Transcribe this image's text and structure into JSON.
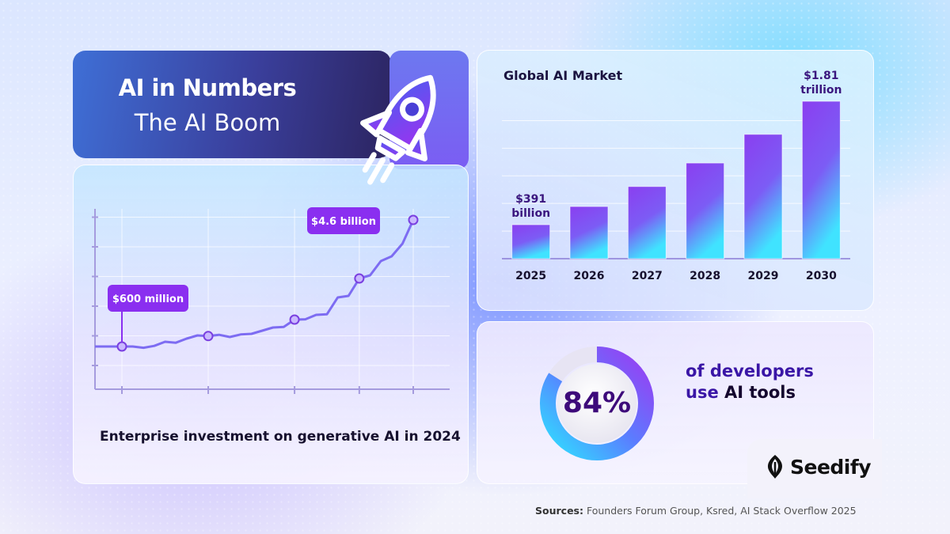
{
  "header": {
    "title": "AI in Numbers",
    "subtitle": "The AI Boom"
  },
  "market_chart": {
    "title": "Global AI Market"
  },
  "investment_chart": {
    "caption_prefix": "Enterprise investment on generative ",
    "caption_ai": "AI",
    "caption_mid": " in ",
    "caption_year": "2024"
  },
  "developers": {
    "percent_label": "84%",
    "line1": "of developers",
    "line2_prefix": "use ",
    "line2_em": "AI tools",
    "percent": 84
  },
  "brand": {
    "name": "Seedify"
  },
  "sources": {
    "label": "Sources:",
    "text": " Founders Forum Group, Ksred, AI Stack Overflow 2025"
  },
  "colors": {
    "accent_purple": "#7b2ff0",
    "accent_cyan": "#2fe0ff",
    "dark_text": "#1b1340"
  },
  "chart_data": [
    {
      "type": "bar",
      "title": "Global AI Market",
      "categories": [
        "2025",
        "2026",
        "2027",
        "2028",
        "2029",
        "2030"
      ],
      "values": [
        0.391,
        0.6,
        0.83,
        1.1,
        1.43,
        1.81
      ],
      "unit": "trillion USD",
      "data_labels": [
        {
          "index": 0,
          "line1": "$391",
          "line2": "billion"
        },
        {
          "index": 5,
          "line1": "$1.81",
          "line2": "trillion"
        }
      ],
      "ylim": [
        0,
        1.81
      ],
      "grid": true
    },
    {
      "type": "line",
      "caption": "Enterprise investment on generative AI in 2024",
      "values": [
        0.6,
        0.6,
        0.56,
        0.62,
        0.75,
        0.72,
        0.85,
        0.95,
        0.93,
        0.97,
        0.9,
        0.98,
        1.0,
        1.1,
        1.2,
        1.22,
        1.45,
        1.46,
        1.6,
        1.62,
        2.15,
        2.2,
        2.75,
        2.85,
        3.3,
        3.45,
        3.85,
        4.6
      ],
      "markers": [
        0,
        8,
        16,
        22,
        27
      ],
      "data_labels": [
        {
          "index": 0,
          "text": "$600 million"
        },
        {
          "index": 27,
          "text": "$4.6 billion"
        }
      ],
      "ylim": [
        0,
        5.6
      ],
      "grid": true
    }
  ]
}
